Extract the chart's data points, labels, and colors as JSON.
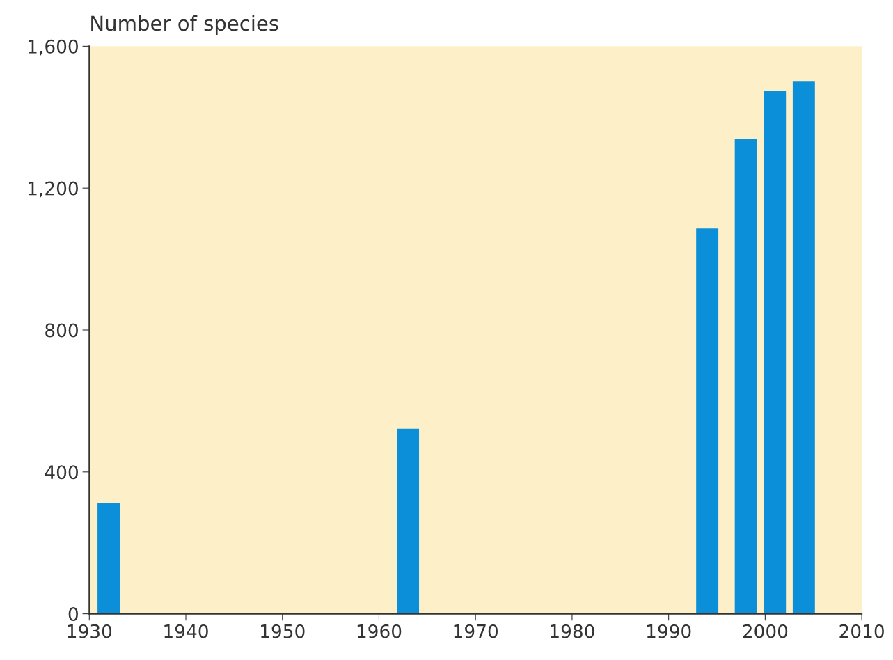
{
  "chart_data": {
    "type": "bar",
    "ylabel": "Number of species",
    "x": [
      1932,
      1963,
      1994,
      1998,
      2001,
      2004
    ],
    "values": [
      312,
      522,
      1086,
      1339,
      1473,
      1500
    ],
    "color": "#0a8fd8",
    "xlim": [
      1930,
      2010
    ],
    "xticks": [
      1930,
      1940,
      1950,
      1960,
      1970,
      1980,
      1990,
      2000,
      2010
    ],
    "ylim": [
      0,
      1600
    ],
    "yticks": [
      {
        "value": 0,
        "label": "0"
      },
      {
        "value": 400,
        "label": "400"
      },
      {
        "value": 800,
        "label": "800"
      },
      {
        "value": 1200,
        "label": "1,200"
      },
      {
        "value": 1600,
        "label": "1,600"
      }
    ],
    "grid": false
  }
}
